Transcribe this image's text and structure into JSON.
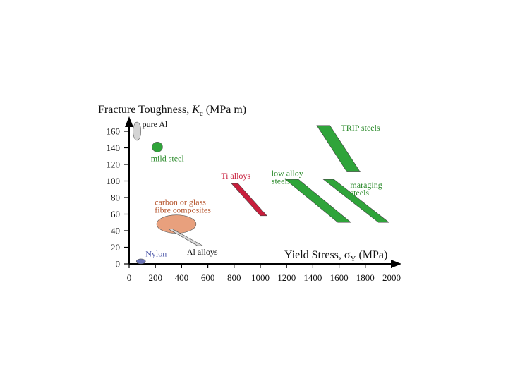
{
  "chart_data": {
    "type": "scatter",
    "title_prefix": "Fracture Toughness, ",
    "title_k": "K",
    "title_sub": "c",
    "title_suffix": " (MPa    m)",
    "xlabel_prefix": "Yield Stress, ",
    "xlabel_sigma": "σ",
    "xlabel_sub": "Y",
    "xlabel_suffix": " (MPa)",
    "xlim": [
      0,
      2000
    ],
    "ylim": [
      0,
      160
    ],
    "xticks": [
      "0",
      "200",
      "400",
      "600",
      "800",
      "1000",
      "1200",
      "1400",
      "1600",
      "1800",
      "2000"
    ],
    "yticks": [
      "0",
      "20",
      "40",
      "60",
      "80",
      "100",
      "120",
      "140",
      "160"
    ],
    "grid": false,
    "materials": [
      {
        "name": "pure Al",
        "label_lines": [
          "pure Al"
        ],
        "shape": "ellipse",
        "center": [
          60,
          160
        ],
        "radius": [
          30,
          11
        ],
        "color": "#d4d4d4",
        "label_color": "#111111",
        "label_at": [
          100,
          165
        ]
      },
      {
        "name": "mild steel",
        "label_lines": [
          "mild steel"
        ],
        "shape": "ellipse",
        "center": [
          215,
          141
        ],
        "radius": [
          40,
          6
        ],
        "color": "#2fa43a",
        "label_color": "#2a8a2a",
        "label_at": [
          165,
          124
        ]
      },
      {
        "name": "Ti alloys",
        "label_lines": [
          "Ti alloys"
        ],
        "shape": "polygon",
        "points": [
          [
            780,
            97
          ],
          [
            830,
            97
          ],
          [
            1050,
            58
          ],
          [
            1000,
            58
          ]
        ],
        "color": "#c81e3c",
        "label_color": "#c81e3c",
        "label_at": [
          700,
          103
        ]
      },
      {
        "name": "low alloy steels",
        "label_lines": [
          "low alloy",
          "steels"
        ],
        "shape": "polygon",
        "points": [
          [
            1190,
            102
          ],
          [
            1290,
            102
          ],
          [
            1690,
            50
          ],
          [
            1590,
            50
          ]
        ],
        "color": "#2fa43a",
        "label_color": "#2a8a2a",
        "label_at": [
          1085,
          106
        ]
      },
      {
        "name": "maraging steels",
        "label_lines": [
          "maraging",
          "steels"
        ],
        "shape": "polygon",
        "points": [
          [
            1480,
            102
          ],
          [
            1560,
            102
          ],
          [
            1980,
            50
          ],
          [
            1900,
            50
          ]
        ],
        "color": "#2fa43a",
        "label_color": "#2a8a2a",
        "label_at": [
          1685,
          92
        ]
      },
      {
        "name": "TRIP steels",
        "label_lines": [
          "TRIP steels"
        ],
        "shape": "polygon",
        "points": [
          [
            1430,
            167
          ],
          [
            1530,
            167
          ],
          [
            1760,
            111
          ],
          [
            1660,
            111
          ]
        ],
        "color": "#2fa43a",
        "label_color": "#2a8a2a",
        "label_at": [
          1615,
          161
        ]
      },
      {
        "name": "carbon or glass fibre composites",
        "label_lines": [
          "carbon or glass",
          "fibre composites"
        ],
        "shape": "ellipse",
        "center": [
          360,
          48
        ],
        "radius": [
          150,
          11
        ],
        "color": "#e8a07d",
        "label_color": "#b5542c",
        "label_at": [
          195,
          71
        ]
      },
      {
        "name": "Al alloys",
        "label_lines": [
          "Al alloys"
        ],
        "shape": "polygon",
        "points": [
          [
            300,
            42
          ],
          [
            330,
            42
          ],
          [
            560,
            22
          ],
          [
            520,
            22
          ]
        ],
        "color": "#d9d9d9",
        "label_color": "#111111",
        "label_at": [
          440,
          11
        ]
      },
      {
        "name": "Nylon",
        "label_lines": [
          "Nylon"
        ],
        "shape": "ellipse",
        "center": [
          90,
          3
        ],
        "radius": [
          35,
          3
        ],
        "color": "#6b74b8",
        "label_color": "#4a55a8",
        "label_at": [
          125,
          9
        ]
      }
    ]
  }
}
